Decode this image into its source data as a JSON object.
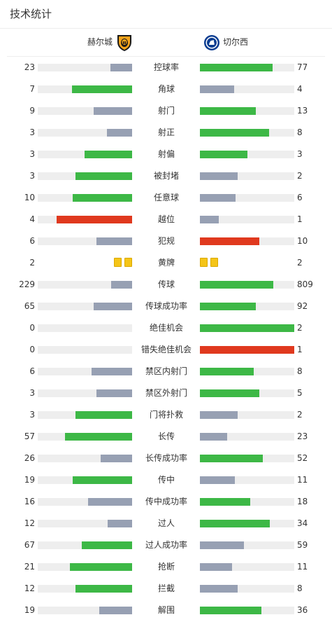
{
  "header": {
    "title": "技术统计"
  },
  "teams": {
    "home": {
      "name": "赫尔城",
      "badge_icon": "hull-city-badge-icon"
    },
    "away": {
      "name": "切尔西",
      "badge_icon": "chelsea-badge-icon"
    }
  },
  "colors": {
    "win": "#3db846",
    "lose": "#97a0b3",
    "red": "#e0391e",
    "track": "#eeeeee"
  },
  "stats": [
    {
      "label": "控球率",
      "home": "23",
      "away": "77",
      "home_frac": 0.23,
      "away_frac": 0.77,
      "home_color": "lose",
      "away_color": "win"
    },
    {
      "label": "角球",
      "home": "7",
      "away": "4",
      "home_frac": 0.64,
      "away_frac": 0.36,
      "home_color": "win",
      "away_color": "lose"
    },
    {
      "label": "射门",
      "home": "9",
      "away": "13",
      "home_frac": 0.41,
      "away_frac": 0.59,
      "home_color": "lose",
      "away_color": "win"
    },
    {
      "label": "射正",
      "home": "3",
      "away": "8",
      "home_frac": 0.27,
      "away_frac": 0.73,
      "home_color": "lose",
      "away_color": "win"
    },
    {
      "label": "射偏",
      "home": "3",
      "away": "3",
      "home_frac": 0.5,
      "away_frac": 0.5,
      "home_color": "win",
      "away_color": "win"
    },
    {
      "label": "被封堵",
      "home": "3",
      "away": "2",
      "home_frac": 0.6,
      "away_frac": 0.4,
      "home_color": "win",
      "away_color": "lose"
    },
    {
      "label": "任意球",
      "home": "10",
      "away": "6",
      "home_frac": 0.63,
      "away_frac": 0.38,
      "home_color": "win",
      "away_color": "lose"
    },
    {
      "label": "越位",
      "home": "4",
      "away": "1",
      "home_frac": 0.8,
      "away_frac": 0.2,
      "home_color": "red",
      "away_color": "lose"
    },
    {
      "label": "犯规",
      "home": "6",
      "away": "10",
      "home_frac": 0.38,
      "away_frac": 0.63,
      "home_color": "lose",
      "away_color": "red"
    },
    {
      "label": "黄牌",
      "home": "2",
      "away": "2",
      "cards": true,
      "home_cards": 2,
      "away_cards": 2
    },
    {
      "label": "传球",
      "home": "229",
      "away": "809",
      "home_frac": 0.22,
      "away_frac": 0.78,
      "home_color": "lose",
      "away_color": "win"
    },
    {
      "label": "传球成功率",
      "home": "65",
      "away": "92",
      "home_frac": 0.41,
      "away_frac": 0.59,
      "home_color": "lose",
      "away_color": "win"
    },
    {
      "label": "绝佳机会",
      "home": "0",
      "away": "2",
      "home_frac": 0,
      "away_frac": 1,
      "home_color": "lose",
      "away_color": "win"
    },
    {
      "label": "错失绝佳机会",
      "home": "0",
      "away": "1",
      "home_frac": 0,
      "away_frac": 1,
      "home_color": "lose",
      "away_color": "red"
    },
    {
      "label": "禁区内射门",
      "home": "6",
      "away": "8",
      "home_frac": 0.43,
      "away_frac": 0.57,
      "home_color": "lose",
      "away_color": "win"
    },
    {
      "label": "禁区外射门",
      "home": "3",
      "away": "5",
      "home_frac": 0.38,
      "away_frac": 0.63,
      "home_color": "lose",
      "away_color": "win"
    },
    {
      "label": "门将扑救",
      "home": "3",
      "away": "2",
      "home_frac": 0.6,
      "away_frac": 0.4,
      "home_color": "win",
      "away_color": "lose"
    },
    {
      "label": "长传",
      "home": "57",
      "away": "23",
      "home_frac": 0.71,
      "away_frac": 0.29,
      "home_color": "win",
      "away_color": "lose"
    },
    {
      "label": "长传成功率",
      "home": "26",
      "away": "52",
      "home_frac": 0.33,
      "away_frac": 0.67,
      "home_color": "lose",
      "away_color": "win"
    },
    {
      "label": "传中",
      "home": "19",
      "away": "11",
      "home_frac": 0.63,
      "away_frac": 0.37,
      "home_color": "win",
      "away_color": "lose"
    },
    {
      "label": "传中成功率",
      "home": "16",
      "away": "18",
      "home_frac": 0.47,
      "away_frac": 0.53,
      "home_color": "lose",
      "away_color": "win"
    },
    {
      "label": "过人",
      "home": "12",
      "away": "34",
      "home_frac": 0.26,
      "away_frac": 0.74,
      "home_color": "lose",
      "away_color": "win"
    },
    {
      "label": "过人成功率",
      "home": "67",
      "away": "59",
      "home_frac": 0.53,
      "away_frac": 0.47,
      "home_color": "win",
      "away_color": "lose"
    },
    {
      "label": "抢断",
      "home": "21",
      "away": "11",
      "home_frac": 0.66,
      "away_frac": 0.34,
      "home_color": "win",
      "away_color": "lose"
    },
    {
      "label": "拦截",
      "home": "12",
      "away": "8",
      "home_frac": 0.6,
      "away_frac": 0.4,
      "home_color": "win",
      "away_color": "lose"
    },
    {
      "label": "解围",
      "home": "19",
      "away": "36",
      "home_frac": 0.35,
      "away_frac": 0.65,
      "home_color": "lose",
      "away_color": "win"
    }
  ]
}
